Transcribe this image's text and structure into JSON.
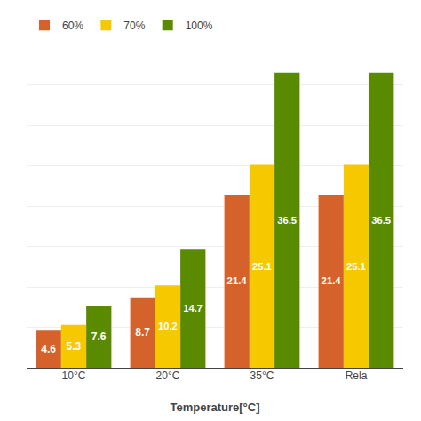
{
  "chart_data": {
    "type": "bar",
    "categories": [
      "10°C",
      "20°C",
      "35°C",
      "Rela"
    ],
    "series": [
      {
        "name": "60%",
        "color": "#D4622A",
        "values": [
          4.6,
          8.7,
          21.4,
          21.4
        ]
      },
      {
        "name": "70%",
        "color": "#F5C800",
        "values": [
          5.3,
          10.2,
          25.1,
          25.1
        ]
      },
      {
        "name": "100%",
        "color": "#5A8A00",
        "values": [
          7.6,
          14.7,
          36.5,
          36.5
        ]
      }
    ],
    "xlabel": "Temperature[°C]",
    "ylim": [
      0,
      40
    ],
    "yticks": [
      0,
      5,
      10,
      15,
      20,
      25,
      30,
      35,
      40
    ],
    "grid": true,
    "legend": "upper left",
    "data_labels": true,
    "tick_labels": "x"
  }
}
